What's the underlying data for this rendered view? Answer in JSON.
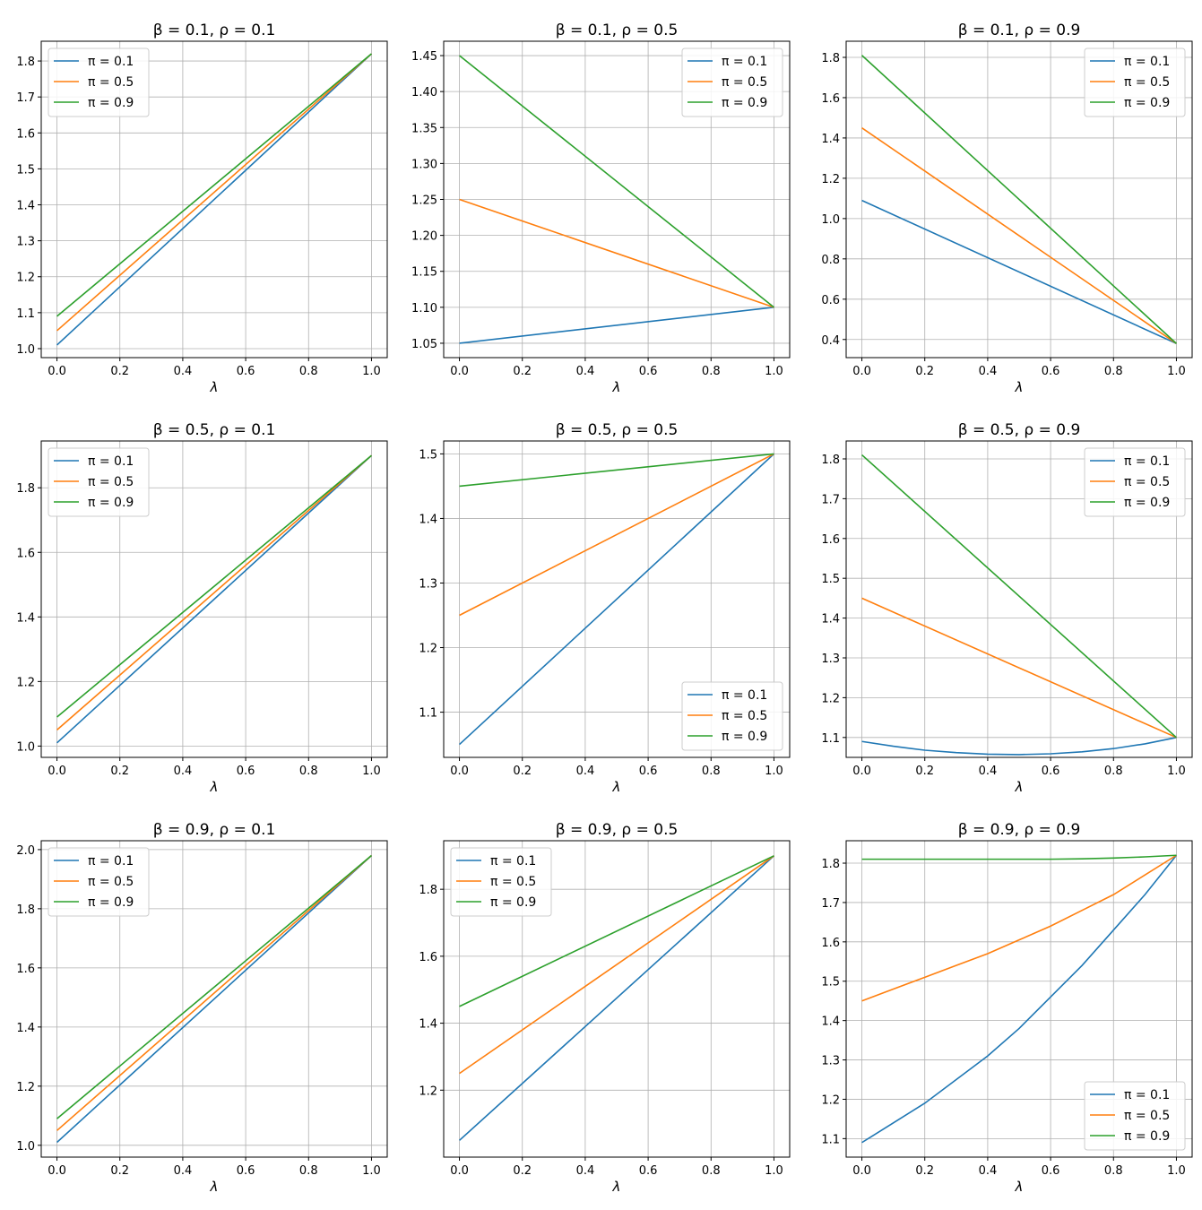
{
  "chart_data": [
    {
      "type": "line",
      "title": "β = 0.1, ρ = 0.1",
      "xlabel": "λ",
      "xlim": [
        -0.05,
        1.05
      ],
      "ylim": [
        0.975,
        1.855
      ],
      "xticks": [
        "0.0",
        "0.2",
        "0.4",
        "0.6",
        "0.8",
        "1.0"
      ],
      "yticks": [
        "1.0",
        "1.1",
        "1.2",
        "1.3",
        "1.4",
        "1.5",
        "1.6",
        "1.7",
        "1.8"
      ],
      "grid": true,
      "legend": "upper-left",
      "series": [
        {
          "name": "π = 0.1",
          "x": [
            0,
            1
          ],
          "y": [
            1.01,
            1.82
          ]
        },
        {
          "name": "π = 0.5",
          "x": [
            0,
            1
          ],
          "y": [
            1.05,
            1.82
          ]
        },
        {
          "name": "π = 0.9",
          "x": [
            0,
            1
          ],
          "y": [
            1.09,
            1.82
          ]
        }
      ]
    },
    {
      "type": "line",
      "title": "β = 0.1, ρ = 0.5",
      "xlabel": "λ",
      "xlim": [
        -0.05,
        1.05
      ],
      "ylim": [
        1.03,
        1.47
      ],
      "xticks": [
        "0.0",
        "0.2",
        "0.4",
        "0.6",
        "0.8",
        "1.0"
      ],
      "yticks": [
        "1.05",
        "1.10",
        "1.15",
        "1.20",
        "1.25",
        "1.30",
        "1.35",
        "1.40",
        "1.45"
      ],
      "grid": true,
      "legend": "upper-right",
      "series": [
        {
          "name": "π = 0.1",
          "x": [
            0,
            1
          ],
          "y": [
            1.05,
            1.1
          ]
        },
        {
          "name": "π = 0.5",
          "x": [
            0,
            1
          ],
          "y": [
            1.25,
            1.1
          ]
        },
        {
          "name": "π = 0.9",
          "x": [
            0,
            1
          ],
          "y": [
            1.45,
            1.1
          ]
        }
      ]
    },
    {
      "type": "line",
      "title": "β = 0.1, ρ = 0.9",
      "xlabel": "λ",
      "xlim": [
        -0.05,
        1.05
      ],
      "ylim": [
        0.31,
        1.88
      ],
      "xticks": [
        "0.0",
        "0.2",
        "0.4",
        "0.6",
        "0.8",
        "1.0"
      ],
      "yticks": [
        "0.4",
        "0.6",
        "0.8",
        "1.0",
        "1.2",
        "1.4",
        "1.6",
        "1.8"
      ],
      "grid": true,
      "legend": "upper-right",
      "series": [
        {
          "name": "π = 0.1",
          "x": [
            0,
            1
          ],
          "y": [
            1.09,
            0.38
          ]
        },
        {
          "name": "π = 0.5",
          "x": [
            0,
            1
          ],
          "y": [
            1.45,
            0.38
          ]
        },
        {
          "name": "π = 0.9",
          "x": [
            0,
            1
          ],
          "y": [
            1.81,
            0.38
          ]
        }
      ]
    },
    {
      "type": "line",
      "title": "β = 0.5, ρ = 0.1",
      "xlabel": "λ",
      "xlim": [
        -0.05,
        1.05
      ],
      "ylim": [
        0.965,
        1.945
      ],
      "xticks": [
        "0.0",
        "0.2",
        "0.4",
        "0.6",
        "0.8",
        "1.0"
      ],
      "yticks": [
        "1.0",
        "1.2",
        "1.4",
        "1.6",
        "1.8"
      ],
      "grid": true,
      "legend": "upper-left",
      "series": [
        {
          "name": "π = 0.1",
          "x": [
            0,
            1
          ],
          "y": [
            1.01,
            1.9
          ]
        },
        {
          "name": "π = 0.5",
          "x": [
            0,
            1
          ],
          "y": [
            1.05,
            1.9
          ]
        },
        {
          "name": "π = 0.9",
          "x": [
            0,
            1
          ],
          "y": [
            1.09,
            1.9
          ]
        }
      ]
    },
    {
      "type": "line",
      "title": "β = 0.5, ρ = 0.5",
      "xlabel": "λ",
      "xlim": [
        -0.05,
        1.05
      ],
      "ylim": [
        1.03,
        1.52
      ],
      "xticks": [
        "0.0",
        "0.2",
        "0.4",
        "0.6",
        "0.8",
        "1.0"
      ],
      "yticks": [
        "1.1",
        "1.2",
        "1.3",
        "1.4",
        "1.5"
      ],
      "grid": true,
      "legend": "lower-right",
      "series": [
        {
          "name": "π = 0.1",
          "x": [
            0,
            1
          ],
          "y": [
            1.05,
            1.5
          ]
        },
        {
          "name": "π = 0.5",
          "x": [
            0,
            1
          ],
          "y": [
            1.25,
            1.5
          ]
        },
        {
          "name": "π = 0.9",
          "x": [
            0,
            1
          ],
          "y": [
            1.45,
            1.5
          ]
        }
      ]
    },
    {
      "type": "line",
      "title": "β = 0.5, ρ = 0.9",
      "xlabel": "λ",
      "xlim": [
        -0.05,
        1.05
      ],
      "ylim": [
        1.05,
        1.845
      ],
      "xticks": [
        "0.0",
        "0.2",
        "0.4",
        "0.6",
        "0.8",
        "1.0"
      ],
      "yticks": [
        "1.1",
        "1.2",
        "1.3",
        "1.4",
        "1.5",
        "1.6",
        "1.7",
        "1.8"
      ],
      "grid": true,
      "legend": "upper-right",
      "series": [
        {
          "name": "π = 0.1",
          "x": [
            0,
            0.1,
            0.2,
            0.3,
            0.4,
            0.5,
            0.6,
            0.7,
            0.8,
            0.9,
            1
          ],
          "y": [
            1.09,
            1.078,
            1.068,
            1.062,
            1.058,
            1.057,
            1.059,
            1.064,
            1.072,
            1.084,
            1.1
          ]
        },
        {
          "name": "π = 0.5",
          "x": [
            0,
            1
          ],
          "y": [
            1.45,
            1.1
          ]
        },
        {
          "name": "π = 0.9",
          "x": [
            0,
            1
          ],
          "y": [
            1.81,
            1.1
          ]
        }
      ]
    },
    {
      "type": "line",
      "title": "β = 0.9, ρ = 0.1",
      "xlabel": "λ",
      "xlim": [
        -0.05,
        1.05
      ],
      "ylim": [
        0.96,
        2.03
      ],
      "xticks": [
        "0.0",
        "0.2",
        "0.4",
        "0.6",
        "0.8",
        "1.0"
      ],
      "yticks": [
        "1.0",
        "1.2",
        "1.4",
        "1.6",
        "1.8",
        "2.0"
      ],
      "grid": true,
      "legend": "upper-left",
      "series": [
        {
          "name": "π = 0.1",
          "x": [
            0,
            1
          ],
          "y": [
            1.01,
            1.98
          ]
        },
        {
          "name": "π = 0.5",
          "x": [
            0,
            1
          ],
          "y": [
            1.05,
            1.98
          ]
        },
        {
          "name": "π = 0.9",
          "x": [
            0,
            1
          ],
          "y": [
            1.09,
            1.98
          ]
        }
      ]
    },
    {
      "type": "line",
      "title": "β = 0.9, ρ = 0.5",
      "xlabel": "λ",
      "xlim": [
        -0.05,
        1.05
      ],
      "ylim": [
        1.0,
        1.945
      ],
      "xticks": [
        "0.0",
        "0.2",
        "0.4",
        "0.6",
        "0.8",
        "1.0"
      ],
      "yticks": [
        "1.2",
        "1.4",
        "1.6",
        "1.8"
      ],
      "grid": true,
      "legend": "upper-left",
      "series": [
        {
          "name": "π = 0.1",
          "x": [
            0,
            1
          ],
          "y": [
            1.05,
            1.9
          ]
        },
        {
          "name": "π = 0.5",
          "x": [
            0,
            1
          ],
          "y": [
            1.25,
            1.9
          ]
        },
        {
          "name": "π = 0.9",
          "x": [
            0,
            1
          ],
          "y": [
            1.45,
            1.9
          ]
        }
      ]
    },
    {
      "type": "line",
      "title": "β = 0.9, ρ = 0.9",
      "xlabel": "λ",
      "xlim": [
        -0.05,
        1.05
      ],
      "ylim": [
        1.053,
        1.857
      ],
      "xticks": [
        "0.0",
        "0.2",
        "0.4",
        "0.6",
        "0.8",
        "1.0"
      ],
      "yticks": [
        "1.1",
        "1.2",
        "1.3",
        "1.4",
        "1.5",
        "1.6",
        "1.7",
        "1.8"
      ],
      "grid": true,
      "legend": "lower-right",
      "series": [
        {
          "name": "π = 0.1",
          "x": [
            0,
            0.1,
            0.2,
            0.3,
            0.4,
            0.5,
            0.6,
            0.7,
            0.8,
            0.9,
            1
          ],
          "y": [
            1.09,
            1.14,
            1.19,
            1.25,
            1.31,
            1.38,
            1.46,
            1.54,
            1.63,
            1.72,
            1.82
          ]
        },
        {
          "name": "π = 0.5",
          "x": [
            0,
            0.1,
            0.2,
            0.3,
            0.4,
            0.5,
            0.6,
            0.7,
            0.8,
            0.9,
            1
          ],
          "y": [
            1.45,
            1.48,
            1.51,
            1.54,
            1.57,
            1.605,
            1.64,
            1.68,
            1.72,
            1.77,
            1.82
          ]
        },
        {
          "name": "π = 0.9",
          "x": [
            0,
            0.1,
            0.2,
            0.3,
            0.4,
            0.5,
            0.6,
            0.7,
            0.8,
            0.9,
            1
          ],
          "y": [
            1.81,
            1.81,
            1.81,
            1.81,
            1.81,
            1.81,
            1.81,
            1.811,
            1.813,
            1.816,
            1.82
          ]
        }
      ]
    }
  ],
  "colors": [
    "#1f77b4",
    "#ff7f0e",
    "#2ca02c"
  ]
}
